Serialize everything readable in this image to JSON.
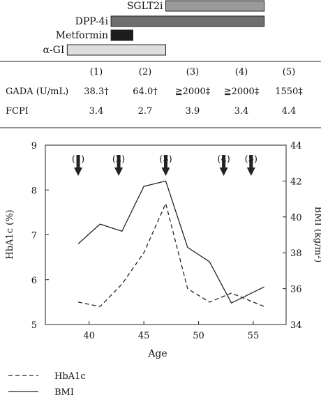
{
  "therapy": {
    "bars": [
      {
        "label": "SGLT2i",
        "start_age": 47,
        "end_age": 56,
        "color": "#9a9a9a"
      },
      {
        "label": "DPP-4i",
        "start_age": 42,
        "end_age": 56,
        "color": "#6f6f6f"
      },
      {
        "label": "Metformin",
        "start_age": 42,
        "end_age": 44,
        "color": "#1c1c1c"
      },
      {
        "label": "α-GI",
        "start_age": 38,
        "end_age": 47,
        "color": "#dedede"
      }
    ]
  },
  "table": {
    "headers": [
      "(1)",
      "(2)",
      "(3)",
      "(4)",
      "(5)"
    ],
    "rows": [
      {
        "label": "GADA (U/mL)",
        "values": [
          "38.3†",
          "64.0†",
          "≧2000‡",
          "≧2000‡",
          "1550‡"
        ]
      },
      {
        "label": "FCPI",
        "values": [
          "3.4",
          "2.7",
          "3.9",
          "3.4",
          "4.4"
        ]
      }
    ]
  },
  "chart_data": {
    "type": "line",
    "xlabel": "Age",
    "ylabel": "HbA1c (%)",
    "y2label": "BMI (kg/m²)",
    "xlim": [
      36,
      58
    ],
    "ylim": [
      5,
      9
    ],
    "y2lim": [
      34,
      44
    ],
    "xticks": [
      40,
      45,
      50,
      55
    ],
    "yticks": [
      5,
      6,
      7,
      8,
      9
    ],
    "y2ticks": [
      34,
      36,
      38,
      40,
      42,
      44
    ],
    "markers": [
      {
        "label": "(1)",
        "age": 39
      },
      {
        "label": "(2)",
        "age": 42.7
      },
      {
        "label": "(3)",
        "age": 47
      },
      {
        "label": "(4)",
        "age": 52.3
      },
      {
        "label": "(5)",
        "age": 54.8
      }
    ],
    "series": [
      {
        "name": "HbA1c",
        "axis": "left",
        "style": "dashed",
        "x": [
          39,
          41,
          43,
          45,
          47,
          49,
          51,
          53,
          56
        ],
        "y": [
          5.5,
          5.4,
          5.9,
          6.6,
          7.7,
          5.8,
          5.5,
          5.7,
          5.4
        ]
      },
      {
        "name": "BMI",
        "axis": "right",
        "style": "solid",
        "x": [
          39,
          41,
          43,
          45,
          47,
          49,
          51,
          53,
          56
        ],
        "y": [
          38.5,
          39.6,
          39.2,
          41.7,
          42.0,
          38.3,
          37.5,
          35.2,
          36.1
        ]
      }
    ],
    "legend_position": "bottom-left",
    "grid": false
  }
}
